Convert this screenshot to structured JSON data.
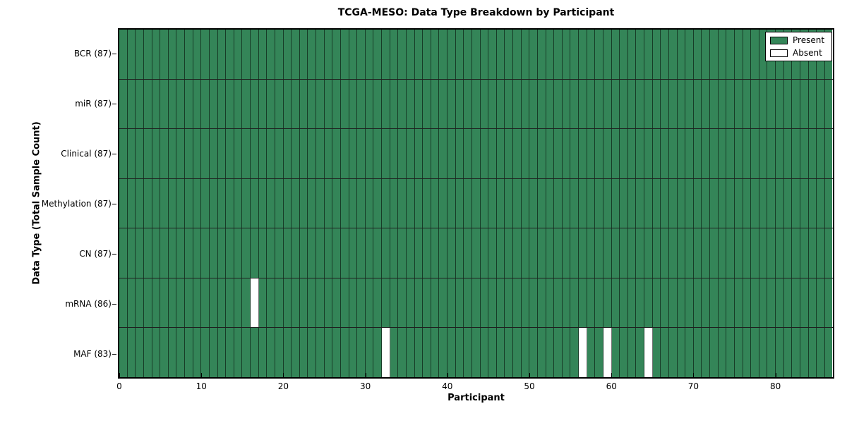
{
  "chart_data": {
    "type": "heatmap",
    "title": "TCGA-MESO: Data Type Breakdown by Participant",
    "xlabel": "Participant",
    "ylabel": "Data Type (Total Sample Count)",
    "n_participants": 87,
    "xlim": [
      0,
      87
    ],
    "xticks": [
      0,
      10,
      20,
      30,
      40,
      50,
      60,
      70,
      80
    ],
    "grid": "cell-edges",
    "legend_position": "upper right",
    "colors": {
      "present": "#348558",
      "absent": "#ffffff",
      "edge": "#000000"
    },
    "legend": [
      {
        "label": "Present",
        "color": "#348558"
      },
      {
        "label": "Absent",
        "color": "#ffffff"
      }
    ],
    "rows": [
      {
        "label": "BCR (87)",
        "data_type": "BCR",
        "present_count": 87,
        "absent_participants": []
      },
      {
        "label": "miR (87)",
        "data_type": "miR",
        "present_count": 87,
        "absent_participants": []
      },
      {
        "label": "Clinical (87)",
        "data_type": "Clinical",
        "present_count": 87,
        "absent_participants": []
      },
      {
        "label": "Methylation (87)",
        "data_type": "Methylation",
        "present_count": 87,
        "absent_participants": []
      },
      {
        "label": "CN (87)",
        "data_type": "CN",
        "present_count": 87,
        "absent_participants": []
      },
      {
        "label": "mRNA (86)",
        "data_type": "mRNA",
        "present_count": 86,
        "absent_participants": [
          16
        ]
      },
      {
        "label": "MAF (83)",
        "data_type": "MAF",
        "present_count": 83,
        "absent_participants": [
          32,
          56,
          59,
          64
        ]
      }
    ]
  }
}
